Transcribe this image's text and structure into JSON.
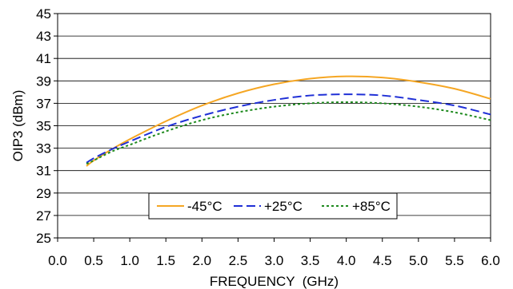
{
  "chart_data": {
    "type": "line",
    "xlabel": "FREQUENCY  (GHz)",
    "ylabel": "OIP3 (dBm)",
    "xlim": [
      0.0,
      6.0
    ],
    "ylim": [
      25,
      45
    ],
    "xticks": [
      "0.0",
      "0.5",
      "1.0",
      "1.5",
      "2.0",
      "2.5",
      "3.0",
      "3.5",
      "4.0",
      "4.5",
      "5.0",
      "5.5",
      "6.0"
    ],
    "yticks": [
      "25",
      "27",
      "29",
      "31",
      "33",
      "35",
      "37",
      "39",
      "41",
      "43",
      "45"
    ],
    "grid": {
      "horizontal": true,
      "vertical": false
    },
    "legend_position": "bottom-center",
    "series": [
      {
        "name": "-45°C",
        "color": "#F5A623",
        "style": "solid",
        "x": [
          0.4,
          0.5,
          0.75,
          1.0,
          1.5,
          2.0,
          2.5,
          3.0,
          3.5,
          4.0,
          4.5,
          5.0,
          5.5,
          6.0
        ],
        "y": [
          31.4,
          31.9,
          32.9,
          33.8,
          35.4,
          36.8,
          37.9,
          38.7,
          39.2,
          39.4,
          39.3,
          38.9,
          38.3,
          37.4
        ]
      },
      {
        "name": "+25°C",
        "color": "#1F2FD6",
        "style": "dashed",
        "x": [
          0.4,
          0.5,
          0.75,
          1.0,
          1.5,
          2.0,
          2.5,
          3.0,
          3.5,
          4.0,
          4.5,
          5.0,
          5.5,
          6.0
        ],
        "y": [
          31.7,
          32.1,
          32.9,
          33.6,
          34.9,
          35.9,
          36.7,
          37.3,
          37.7,
          37.8,
          37.7,
          37.3,
          36.8,
          36.0
        ]
      },
      {
        "name": "+85°C",
        "color": "#1E8A1E",
        "style": "dotted",
        "x": [
          0.4,
          0.5,
          0.75,
          1.0,
          1.5,
          2.0,
          2.5,
          3.0,
          3.5,
          4.0,
          4.5,
          5.0,
          5.5,
          6.0
        ],
        "y": [
          31.6,
          31.9,
          32.7,
          33.3,
          34.5,
          35.5,
          36.2,
          36.7,
          37.0,
          37.1,
          37.0,
          36.7,
          36.2,
          35.5
        ]
      }
    ]
  }
}
